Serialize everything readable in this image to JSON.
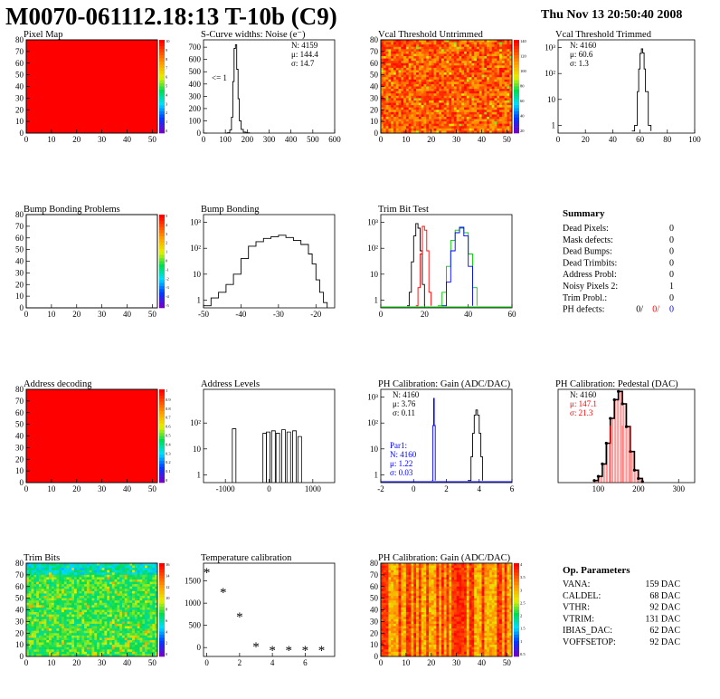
{
  "header": {
    "title": "M0070-061112.18:13 T-10b (C9)",
    "date": "Thu Nov 13 20:50:40 2008"
  },
  "colors": {
    "red_map": "#ff0000",
    "pad_fill": "#ffffff",
    "axis": "#000000",
    "trim_red": "#ff0000",
    "trim_green": "#00cc00",
    "trim_blue": "#0000ff",
    "par1_blue": "#0000ff",
    "ped_red": "#ff0000"
  },
  "chart_data": [
    {
      "id": "pixel-map",
      "type": "heatmap",
      "title": "Pixel Map",
      "xlim": [
        0,
        52
      ],
      "ylim": [
        0,
        80
      ],
      "xticks": [
        "0",
        "10",
        "20",
        "30",
        "40",
        "50"
      ],
      "yticks": [
        "0",
        "10",
        "20",
        "30",
        "40",
        "50",
        "60",
        "70",
        "80"
      ],
      "pattern": "uniform-red",
      "zticks": [
        "10",
        "9",
        "8",
        "7",
        "6",
        "5",
        "4",
        "3",
        "2",
        "1",
        "0"
      ]
    },
    {
      "id": "scurve-noise",
      "type": "line",
      "title": "S-Curve widths: Noise (e⁻)",
      "xlim": [
        0,
        600
      ],
      "ylim": [
        0,
        760
      ],
      "xticks": [
        "0",
        "100",
        "200",
        "300",
        "400",
        "500",
        "600"
      ],
      "yticks": [
        "0",
        "100",
        "200",
        "300",
        "400",
        "500",
        "600",
        "700"
      ],
      "stats": [
        "N: 4159",
        "μ: 144.4",
        "σ: 14.7"
      ],
      "annotation": "<= 1",
      "x": [
        100,
        110,
        120,
        128,
        134,
        140,
        146,
        152,
        158,
        164,
        172,
        182,
        195,
        210
      ],
      "y": [
        0,
        3,
        25,
        130,
        420,
        690,
        720,
        520,
        280,
        100,
        30,
        8,
        2,
        0
      ]
    },
    {
      "id": "vcal-untrimmed",
      "type": "heatmap",
      "title": "Vcal Threshold Untrimmed",
      "xlim": [
        0,
        52
      ],
      "ylim": [
        0,
        80
      ],
      "xticks": [
        "0",
        "10",
        "20",
        "30",
        "40",
        "50"
      ],
      "yticks": [
        "0",
        "10",
        "20",
        "30",
        "40",
        "50",
        "60",
        "70",
        "80"
      ],
      "pattern": "noisy-orange",
      "zticks": [
        "140",
        "120",
        "100",
        "80",
        "60",
        "40",
        "20"
      ]
    },
    {
      "id": "vcal-trimmed",
      "type": "line",
      "title": "Vcal Threshold Trimmed",
      "xlim": [
        0,
        100
      ],
      "log_y": true,
      "ylim": [
        0.5,
        2000
      ],
      "xticks": [
        "0",
        "20",
        "40",
        "60",
        "80",
        "100"
      ],
      "yticks": [
        "1",
        "10",
        "10²",
        "10³"
      ],
      "stats": [
        "N: 4160",
        "μ: 60.6",
        "σ: 1.3"
      ],
      "x": [
        54,
        56,
        58,
        59,
        60,
        61,
        62,
        63,
        64,
        66,
        68
      ],
      "y": [
        0.6,
        1,
        20,
        150,
        600,
        900,
        620,
        150,
        20,
        1,
        0.6
      ]
    },
    {
      "id": "bump-problems",
      "type": "heatmap",
      "title": "Bump Bonding Problems",
      "xlim": [
        0,
        52
      ],
      "ylim": [
        0,
        80
      ],
      "xticks": [
        "0",
        "10",
        "20",
        "30",
        "40",
        "50"
      ],
      "yticks": [
        "0",
        "10",
        "20",
        "30",
        "40",
        "50",
        "60",
        "70",
        "80"
      ],
      "pattern": "empty",
      "zticks": [
        "5",
        "4",
        "3",
        "2",
        "1",
        "0",
        "-1",
        "-2",
        "-3",
        "-4",
        "-5"
      ]
    },
    {
      "id": "bump-bonding",
      "type": "line",
      "title": "Bump Bonding",
      "xlim": [
        -50,
        -15
      ],
      "log_y": true,
      "ylim": [
        0.5,
        2000
      ],
      "xticks": [
        "-50",
        "-40",
        "-30",
        "-20"
      ],
      "yticks": [
        "1",
        "10",
        "10²",
        "10³"
      ],
      "x": [
        -50,
        -48,
        -46,
        -44,
        -42,
        -40,
        -38,
        -36,
        -34,
        -32,
        -30,
        -28,
        -26,
        -24,
        -22,
        -21,
        -20,
        -19,
        -18,
        -17
      ],
      "y": [
        0.6,
        1.2,
        2,
        4,
        10,
        40,
        120,
        180,
        240,
        280,
        320,
        260,
        200,
        140,
        60,
        25,
        6,
        2,
        0.8,
        0.5
      ]
    },
    {
      "id": "trim-bit-test",
      "type": "line",
      "title": "Trim Bit Test",
      "xlim": [
        0,
        60
      ],
      "log_y": true,
      "ylim": [
        0.5,
        2000
      ],
      "xticks": [
        "0",
        "20",
        "40",
        "60"
      ],
      "yticks": [
        "1",
        "10",
        "10²",
        "10³"
      ],
      "series": [
        {
          "color": "black",
          "x": [
            12,
            13,
            14,
            15,
            16,
            17,
            18,
            19,
            20
          ],
          "y": [
            0.6,
            2,
            30,
            300,
            900,
            600,
            80,
            4,
            0.6
          ]
        },
        {
          "color": "red",
          "x": [
            16,
            17,
            18,
            19,
            20,
            21,
            22,
            23
          ],
          "y": [
            0.6,
            3,
            60,
            700,
            500,
            80,
            2,
            0.6
          ]
        },
        {
          "color": "green",
          "x": [
            26,
            28,
            30,
            32,
            34,
            36,
            38,
            40,
            42,
            44
          ],
          "y": [
            0.6,
            2,
            20,
            200,
            500,
            600,
            400,
            60,
            3,
            0.6
          ]
        },
        {
          "color": "blue",
          "x": [
            28,
            30,
            32,
            34,
            36,
            38,
            40,
            42
          ],
          "y": [
            0.6,
            5,
            80,
            400,
            650,
            300,
            20,
            0.6
          ]
        }
      ]
    },
    {
      "id": "address-decoding",
      "type": "heatmap",
      "title": "Address decoding",
      "xlim": [
        0,
        52
      ],
      "ylim": [
        0,
        80
      ],
      "xticks": [
        "0",
        "10",
        "20",
        "30",
        "40",
        "50"
      ],
      "yticks": [
        "0",
        "10",
        "20",
        "30",
        "40",
        "50",
        "60",
        "70",
        "80"
      ],
      "pattern": "uniform-red",
      "zticks": [
        "1",
        "0.9",
        "0.8",
        "0.7",
        "0.6",
        "0.5",
        "0.4",
        "0.3",
        "0.2",
        "0.1",
        "0"
      ]
    },
    {
      "id": "address-levels",
      "type": "line",
      "title": "Address Levels",
      "xlim": [
        -1500,
        1500
      ],
      "log_y": true,
      "ylim": [
        0.5,
        2000
      ],
      "xticks": [
        "-1000",
        "0",
        "1000"
      ],
      "yticks": [
        "1",
        "10",
        "10²"
      ],
      "peaks": [
        -800,
        -100,
        -20,
        100,
        200,
        330,
        450,
        580,
        700
      ],
      "peak_heights": [
        60,
        40,
        45,
        50,
        40,
        55,
        45,
        50,
        30
      ]
    },
    {
      "id": "ph-gain",
      "type": "line",
      "title": "PH Calibration: Gain (ADC/DAC)",
      "xlim": [
        -2,
        6
      ],
      "log_y": true,
      "ylim": [
        0.5,
        2000
      ],
      "xticks": [
        "-2",
        "0",
        "2",
        "4",
        "6"
      ],
      "yticks": [
        "1",
        "10",
        "10²",
        "10³"
      ],
      "stats": [
        "N: 4160",
        "μ: 3.76",
        "σ: 0.11"
      ],
      "par_stats": [
        "Par1:",
        "N: 4160",
        "μ: 1.22",
        "σ: 0.03"
      ],
      "series": [
        {
          "color": "black",
          "x": [
            3.3,
            3.5,
            3.6,
            3.7,
            3.8,
            3.9,
            4.0,
            4.1,
            4.2
          ],
          "y": [
            0.6,
            5,
            40,
            200,
            320,
            200,
            40,
            5,
            0.6
          ]
        },
        {
          "color": "blue",
          "x": [
            1.12,
            1.18,
            1.22,
            1.26,
            1.32
          ],
          "y": [
            0.6,
            80,
            900,
            80,
            0.6
          ]
        }
      ]
    },
    {
      "id": "ph-pedestal",
      "type": "line",
      "title": "PH Calibration: Pedestal (DAC)",
      "xlim": [
        0,
        340
      ],
      "ylim": [
        0,
        90
      ],
      "xticks": [
        "100",
        "200",
        "300"
      ],
      "yticks": [],
      "stats": [
        "N: 4160",
        "μ: 147.1",
        "σ: 21.3"
      ],
      "x": [
        90,
        100,
        110,
        120,
        130,
        140,
        150,
        160,
        170,
        180,
        190,
        200,
        210
      ],
      "y": [
        2,
        6,
        18,
        38,
        62,
        80,
        88,
        76,
        54,
        30,
        12,
        4,
        1
      ]
    },
    {
      "id": "trim-bits",
      "type": "heatmap",
      "title": "Trim Bits",
      "xlim": [
        0,
        52
      ],
      "ylim": [
        0,
        80
      ],
      "xticks": [
        "0",
        "10",
        "20",
        "30",
        "40",
        "50"
      ],
      "yticks": [
        "0",
        "10",
        "20",
        "30",
        "40",
        "50",
        "60",
        "70",
        "80"
      ],
      "pattern": "noisy-green",
      "zticks": [
        "16",
        "14",
        "12",
        "10",
        "8",
        "6",
        "4",
        "2",
        "0"
      ]
    },
    {
      "id": "temperature-calibration",
      "type": "scatter",
      "title": "Temperature calibration",
      "xlim": [
        -0.2,
        7.8
      ],
      "ylim": [
        -200,
        1900
      ],
      "xticks": [
        "0",
        "2",
        "4",
        "6"
      ],
      "yticks": [
        "0",
        "500",
        "1000",
        "1500"
      ],
      "x": [
        0,
        1,
        2,
        3,
        4,
        5,
        6,
        7
      ],
      "y": [
        1700,
        1250,
        700,
        20,
        -60,
        -60,
        -60,
        -60
      ]
    },
    {
      "id": "ph-gain-map",
      "type": "heatmap",
      "title": "PH Calibration: Gain (ADC/DAC)",
      "xlim": [
        0,
        52
      ],
      "ylim": [
        0,
        80
      ],
      "xticks": [
        "0",
        "10",
        "20",
        "30",
        "40",
        "50"
      ],
      "yticks": [
        "0",
        "10",
        "20",
        "30",
        "40",
        "50",
        "60",
        "70",
        "80"
      ],
      "pattern": "columns",
      "zticks": [
        "4",
        "3.5",
        "3",
        "2.5",
        "2",
        "1.5",
        "1",
        "0.5"
      ]
    }
  ],
  "summary": {
    "title": "Summary",
    "rows": [
      {
        "label": "Dead Pixels:",
        "value": "0"
      },
      {
        "label": "Mask defects:",
        "value": "0"
      },
      {
        "label": "Dead Bumps:",
        "value": "0"
      },
      {
        "label": "Dead Trimbits:",
        "value": "0"
      },
      {
        "label": "Address Probl:",
        "value": "0"
      },
      {
        "label": "Noisy Pixels 2:",
        "value": "1"
      },
      {
        "label": "Trim Probl.:",
        "value": "0"
      }
    ],
    "ph_label": "PH defects:",
    "ph_values": [
      "0/",
      "0/",
      "0"
    ]
  },
  "op_parameters": {
    "title": "Op. Parameters",
    "rows": [
      {
        "label": "VANA:",
        "value": "159 DAC"
      },
      {
        "label": "CALDEL:",
        "value": "68 DAC"
      },
      {
        "label": "VTHR:",
        "value": "92 DAC"
      },
      {
        "label": "VTRIM:",
        "value": "131 DAC"
      },
      {
        "label": "IBIAS_DAC:",
        "value": "62 DAC"
      },
      {
        "label": "VOFFSETOP:",
        "value": "92 DAC"
      }
    ]
  }
}
